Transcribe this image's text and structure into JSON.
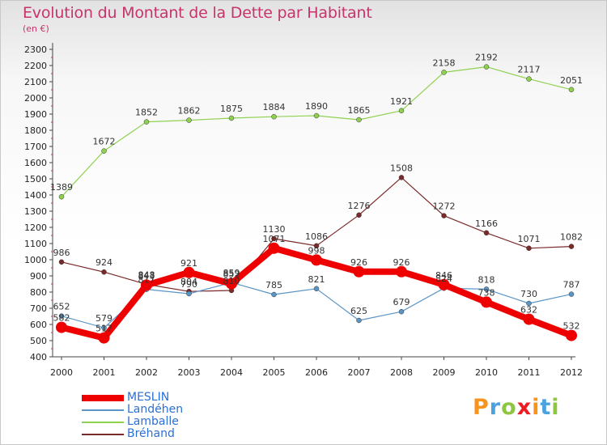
{
  "chart_data": {
    "type": "line",
    "title": "Evolution du Montant de la Dette par Habitant",
    "subtitle": "(en €)",
    "xlabel": "",
    "ylabel": "",
    "ylim": [
      400,
      2300
    ],
    "ytick_step": 100,
    "categories": [
      "2000",
      "2001",
      "2002",
      "2003",
      "2004",
      "2005",
      "2006",
      "2007",
      "2008",
      "2009",
      "2010",
      "2011",
      "2012"
    ],
    "series": [
      {
        "name": "Bréhand",
        "color": "#7b2a2a",
        "width": 1.2,
        "values": [
          986,
          924,
          848,
          804,
          810,
          1130,
          1086,
          1276,
          1508,
          1272,
          1166,
          1071,
          1082
        ]
      },
      {
        "name": "Lamballe",
        "color": "#8fd14f",
        "width": 1.2,
        "values": [
          1389,
          1672,
          1852,
          1862,
          1875,
          1884,
          1890,
          1865,
          1921,
          2158,
          2192,
          2117,
          2051
        ]
      },
      {
        "name": "Landéhen",
        "color": "#5b95c6",
        "width": 1.2,
        "values": [
          652,
          579,
          817,
          790,
          859,
          785,
          821,
          625,
          679,
          824,
          818,
          730,
          787
        ]
      },
      {
        "name": "MESLIN",
        "color": "#ee0000",
        "width": 8,
        "values": [
          582,
          517,
          843,
          921,
          852,
          1071,
          998,
          926,
          926,
          846,
          738,
          632,
          532
        ]
      }
    ],
    "legend": [
      "MESLIN",
      "Landéhen",
      "Lamballe",
      "Bréhand"
    ],
    "legend_position": "bottom-left"
  },
  "logo": {
    "text": "Proxiti",
    "letters": [
      "P",
      "r",
      "o",
      "x",
      "i",
      "t",
      "i"
    ],
    "colors": [
      "#f7941d",
      "#4aa3df",
      "#8dc63f",
      "#ec1c24",
      "#f7941d",
      "#4aa3df",
      "#8dc63f"
    ]
  }
}
